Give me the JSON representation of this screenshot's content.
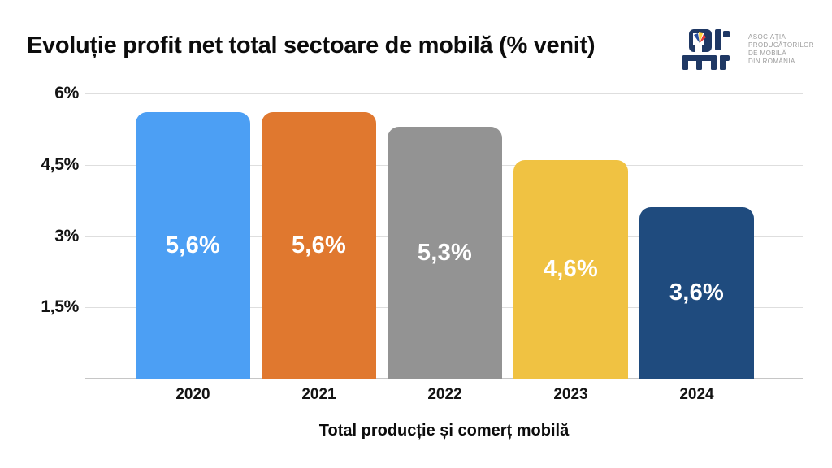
{
  "title": "Evoluție profit net total sectoare de mobilă (% venit)",
  "logo": {
    "org_lines": [
      "ASOCIAȚIA",
      "PRODUCĂTORILOR",
      "DE MOBILĂ",
      "DIN ROMÂNIA"
    ],
    "mark_color": "#1f3864",
    "flag_colors": [
      "#2850a0",
      "#ffd23c",
      "#e23b3b"
    ]
  },
  "chart_data": {
    "type": "bar",
    "title": "Evoluție profit net total sectoare de mobilă (% venit)",
    "categories": [
      "2020",
      "2021",
      "2022",
      "2023",
      "2024"
    ],
    "values": [
      5.6,
      5.6,
      5.3,
      4.6,
      3.6
    ],
    "bar_labels": [
      "5,6%",
      "5,6%",
      "5,3%",
      "4,6%",
      "3,6%"
    ],
    "bar_colors": [
      "#4c9ff4",
      "#e0782f",
      "#939393",
      "#f0c242",
      "#1f4b7e"
    ],
    "value_label_color": "#ffffff",
    "xlabel": "Total producție și comerț mobilă",
    "ylabel": "",
    "ylim": [
      0,
      6
    ],
    "yticks": [
      {
        "value": 6,
        "label": "6%"
      },
      {
        "value": 4.5,
        "label": "4,5%"
      },
      {
        "value": 3,
        "label": "3%"
      },
      {
        "value": 1.5,
        "label": "1,5%"
      }
    ],
    "grid": true,
    "legend": false
  }
}
